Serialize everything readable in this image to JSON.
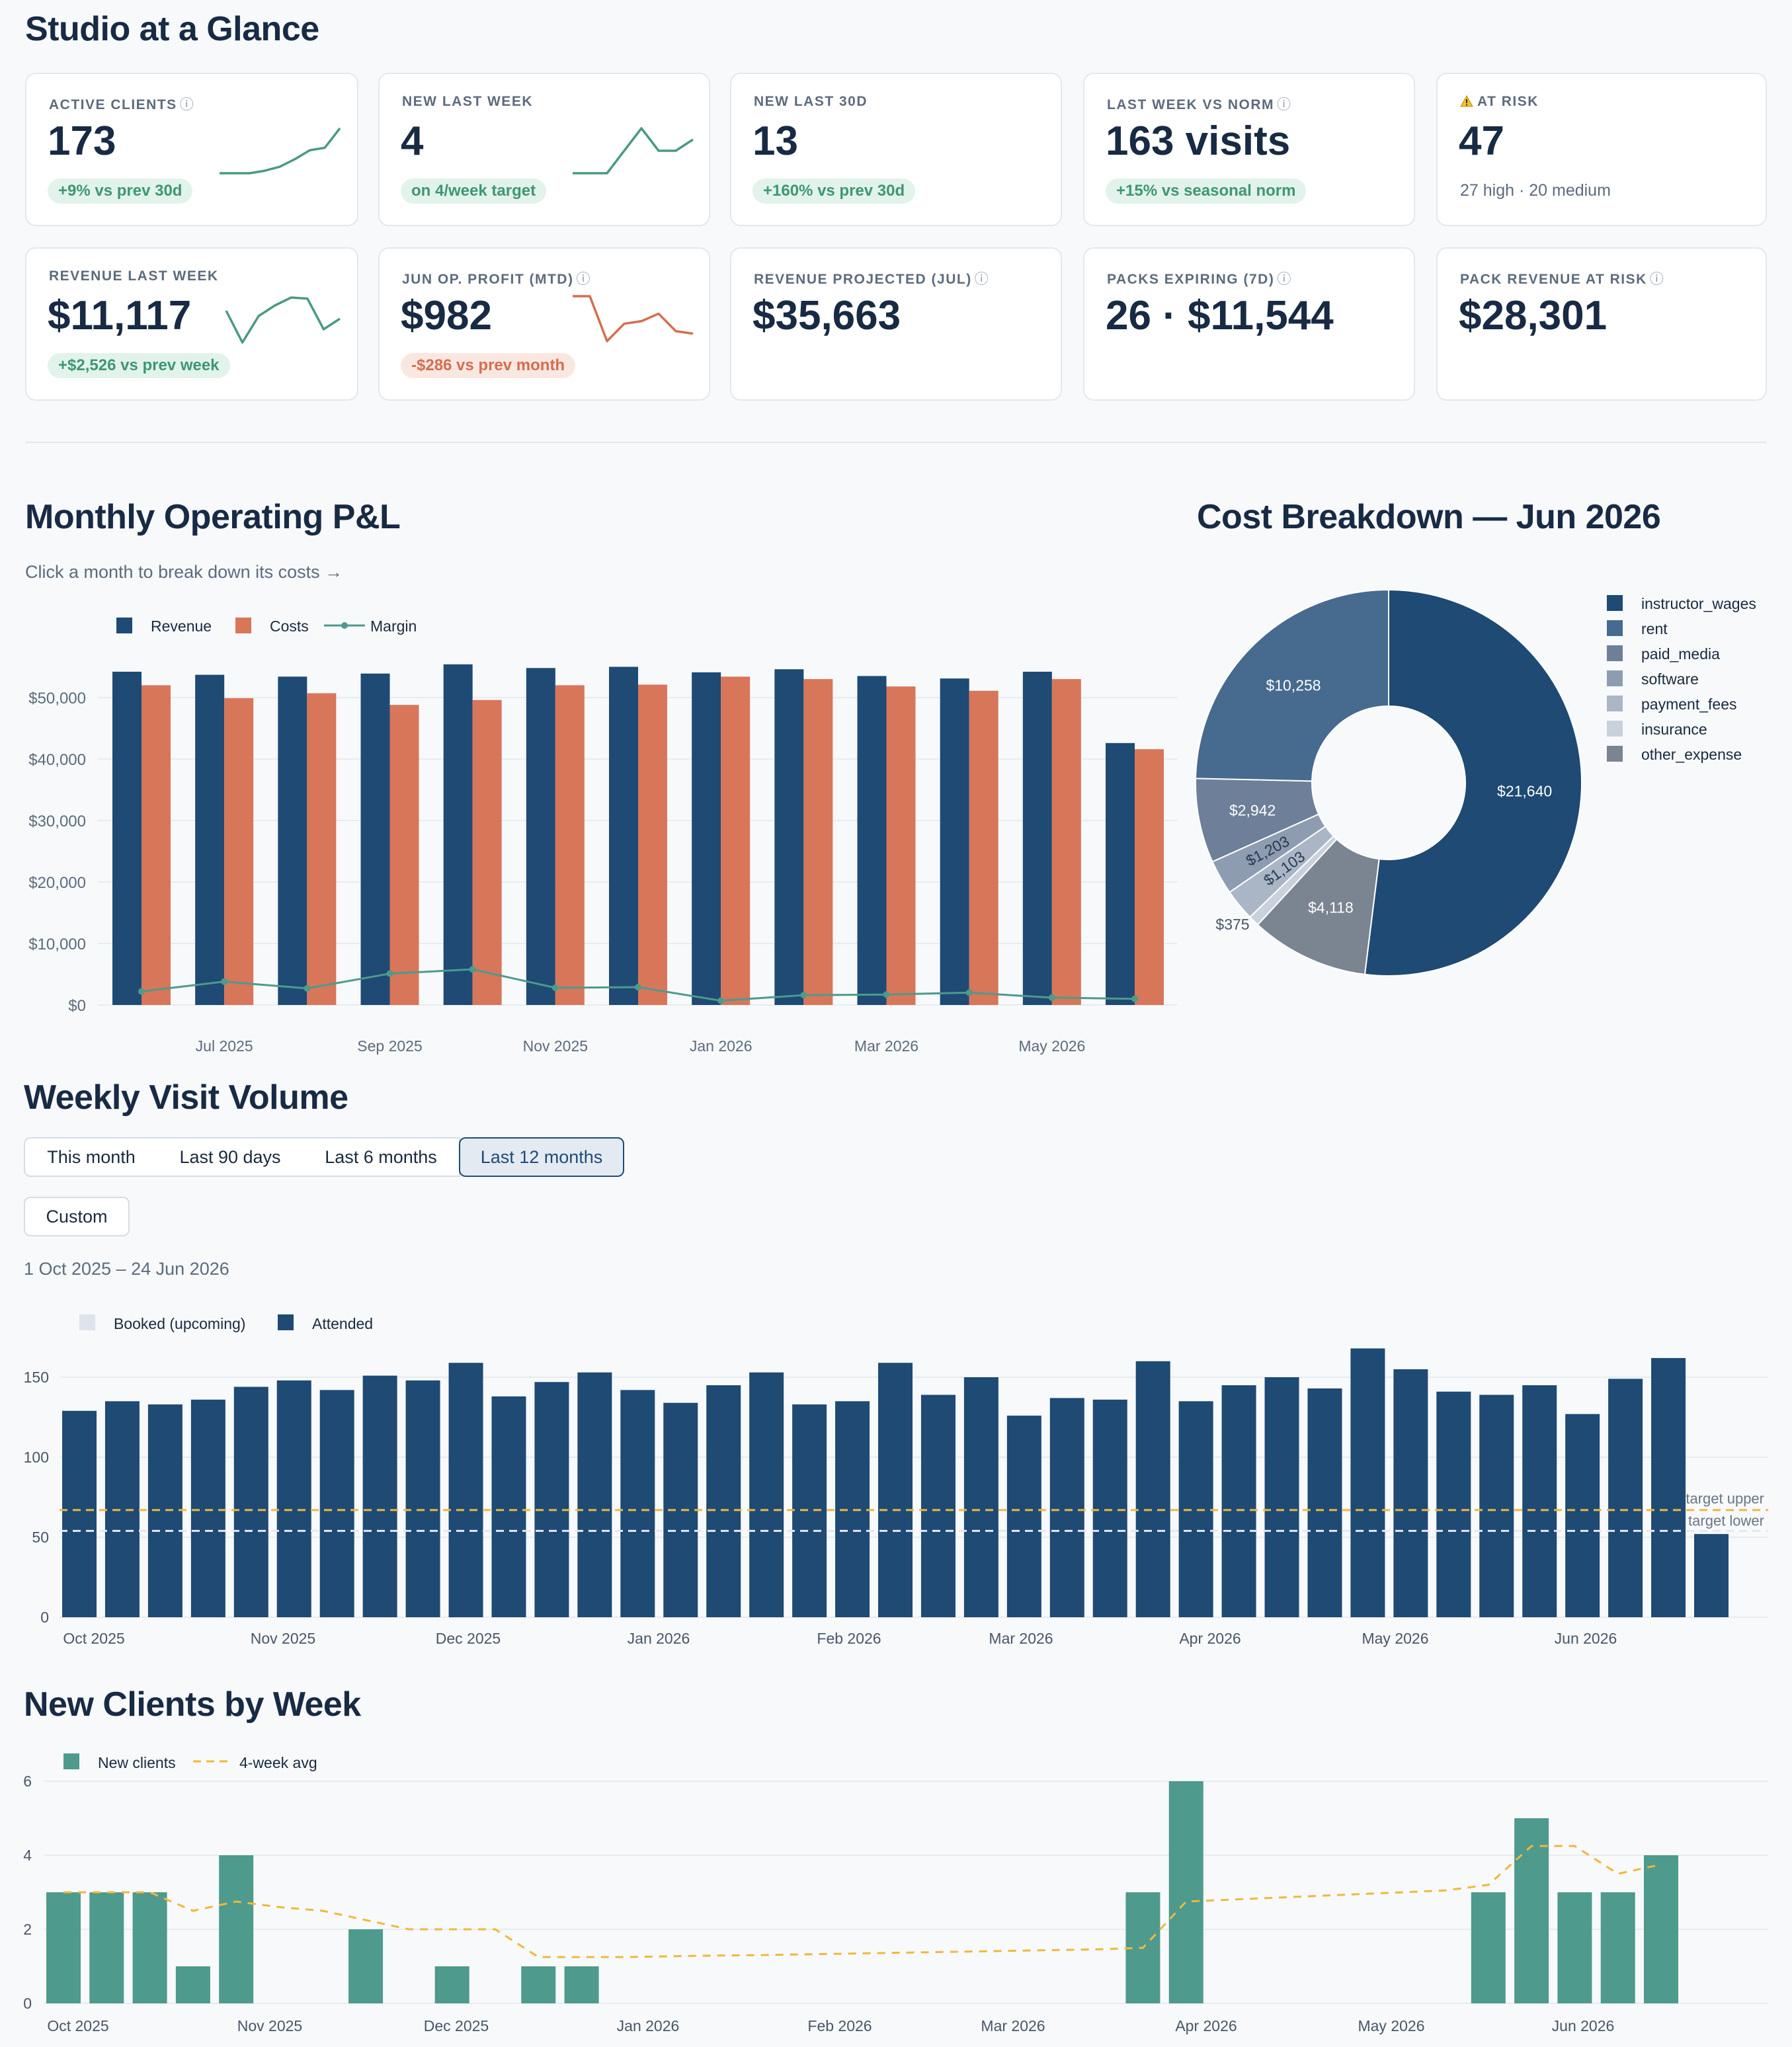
{
  "page": {
    "title": "Studio at a Glance"
  },
  "kpis_row1": [
    {
      "label": "ACTIVE CLIENTS",
      "info": "ⓘ",
      "value": "173",
      "pill": "+9% vs prev 30d",
      "pill_tone": "green",
      "spark": [
        0,
        0,
        0,
        0.5,
        1.3,
        2.8,
        4.6,
        5.1,
        9
      ],
      "spark_color": "#4a9a82"
    },
    {
      "label": "NEW LAST WEEK",
      "info": "",
      "value": "4",
      "pill": "on 4/week target",
      "pill_tone": "green",
      "spark": [
        2,
        2,
        2,
        3,
        4,
        3,
        3,
        3.5
      ],
      "spark_color": "#4a9a82"
    },
    {
      "label": "NEW LAST 30D",
      "info": "",
      "value": "13",
      "pill": "+160% vs prev 30d",
      "pill_tone": "green"
    },
    {
      "label": "LAST WEEK VS NORM",
      "info": "ⓘ",
      "value": "163 visits",
      "pill": "+15% vs seasonal norm",
      "pill_tone": "green"
    },
    {
      "label": "AT RISK",
      "icon": "warning-icon",
      "value": "47",
      "sub": "27 high · 20 medium"
    }
  ],
  "kpis_row2": [
    {
      "label": "REVENUE LAST WEEK",
      "info": "",
      "value": "$11,117",
      "pill": "+$2,526 vs prev week",
      "pill_tone": "green",
      "spark": [
        8,
        2,
        7,
        9,
        10.5,
        10.3,
        4.5,
        6.5
      ],
      "spark_color": "#4a9a82"
    },
    {
      "label": "JUN OP. PROFIT (MTD)",
      "info": "ⓘ",
      "value": "$982",
      "pill": "-$286 vs prev month",
      "pill_tone": "red",
      "spark": [
        10,
        10,
        1,
        4.5,
        5,
        6.5,
        3,
        2.5
      ],
      "spark_color": "#d46e4f"
    },
    {
      "label": "REVENUE PROJECTED (JUL)",
      "info": "ⓘ",
      "value": "$35,663"
    },
    {
      "label": "PACKS EXPIRING (7D)",
      "info": "ⓘ",
      "value": "26 · $11,544"
    },
    {
      "label": "PACK REVENUE AT RISK",
      "info": "ⓘ",
      "value": "$28,301"
    }
  ],
  "pl": {
    "title": "Monthly Operating P&L",
    "hint": "Click a month to break down its costs →",
    "legend": [
      "Revenue",
      "Costs",
      "Margin"
    ]
  },
  "costs": {
    "title": "Cost Breakdown — Jun 2026"
  },
  "visits": {
    "title": "Weekly Visit Volume",
    "ranges": [
      "This month",
      "Last 90 days",
      "Last 6 months",
      "Last 12 months"
    ],
    "active_range": "Last 12 months",
    "custom": "Custom",
    "date_range": "1 Oct 2025 – 24 Jun 2026",
    "legend": [
      "Booked (upcoming)",
      "Attended"
    ],
    "target_upper_label": "target upper",
    "target_lower_label": "target lower"
  },
  "newclients": {
    "title": "New Clients by Week",
    "legend": [
      "New clients",
      "4-week avg"
    ]
  },
  "colors": {
    "navy": "#1e4a74",
    "orange": "#d8765a",
    "teal": "#4e9a8c",
    "amber": "#f0b83c"
  },
  "chart_data": [
    {
      "type": "bar",
      "title": "Monthly Operating P&L",
      "categories": [
        "Jun 2025",
        "Jul 2025",
        "Aug 2025",
        "Sep 2025",
        "Oct 2025",
        "Nov 2025",
        "Dec 2025",
        "Jan 2026",
        "Feb 2026",
        "Mar 2026",
        "Apr 2026",
        "May 2026",
        "Jun 2026"
      ],
      "tick_labels": [
        "Jul 2025",
        "Sep 2025",
        "Nov 2025",
        "Jan 2026",
        "Mar 2026",
        "May 2026"
      ],
      "series": [
        {
          "name": "Revenue",
          "values": [
            54200,
            53700,
            53400,
            53900,
            55400,
            54800,
            55000,
            54100,
            54600,
            53500,
            53100,
            54200,
            42600
          ]
        },
        {
          "name": "Costs",
          "values": [
            52000,
            49900,
            50700,
            48800,
            49600,
            52000,
            52100,
            53400,
            53000,
            51800,
            51100,
            53000,
            41600
          ]
        },
        {
          "name": "Margin",
          "values": [
            2200,
            3800,
            2700,
            5100,
            5800,
            2800,
            2900,
            700,
            1600,
            1700,
            2000,
            1200,
            1000
          ]
        }
      ],
      "ylabel": "",
      "yticks": [
        "$0",
        "$10,000",
        "$20,000",
        "$30,000",
        "$40,000",
        "$50,000"
      ],
      "ylim": [
        0,
        58000
      ],
      "legend": "top-left",
      "grid": true
    },
    {
      "type": "pie",
      "title": "Cost Breakdown — Jun 2026",
      "labels": [
        "instructor_wages",
        "rent",
        "paid_media",
        "software",
        "payment_fees",
        "insurance",
        "other_expense"
      ],
      "values": [
        21640,
        10258,
        2942,
        1203,
        1103,
        375,
        4118
      ],
      "value_labels": [
        "$21,640",
        "$10,258",
        "$2,942",
        "$1,203",
        "$1,103",
        "$375",
        "$4,118"
      ],
      "colors": [
        "#1e4a74",
        "#476a8f",
        "#6d7f99",
        "#8e9cb1",
        "#aab6c6",
        "#c8d1dc",
        "#7b8491"
      ],
      "legend": "right",
      "donut": true
    },
    {
      "type": "bar",
      "title": "Weekly Visit Volume",
      "x_ticks": [
        "Oct 2025",
        "Nov 2025",
        "Dec 2025",
        "Jan 2026",
        "Feb 2026",
        "Mar 2026",
        "Apr 2026",
        "May 2026",
        "Jun 2026"
      ],
      "series": [
        {
          "name": "Attended",
          "values": [
            129,
            135,
            133,
            136,
            144,
            148,
            142,
            151,
            148,
            159,
            138,
            147,
            153,
            142,
            134,
            145,
            153,
            133,
            135,
            159,
            139,
            150,
            126,
            137,
            136,
            160,
            135,
            145,
            150,
            143,
            168,
            155,
            141,
            139,
            145,
            127,
            149,
            162,
            52
          ]
        },
        {
          "name": "Booked (upcoming)",
          "values": []
        }
      ],
      "target_upper": 67,
      "target_lower": 54,
      "yticks": [
        0,
        50,
        100,
        150
      ],
      "ylim": [
        0,
        170
      ],
      "grid": true
    },
    {
      "type": "bar",
      "title": "New Clients by Week",
      "x_ticks": [
        "Oct 2025",
        "Nov 2025",
        "Dec 2025",
        "Jan 2026",
        "Feb 2026",
        "Mar 2026",
        "Apr 2026",
        "May 2026",
        "Jun 2026"
      ],
      "series": [
        {
          "name": "New clients",
          "values": [
            3,
            3,
            3,
            1,
            4,
            0,
            0,
            2,
            0,
            1,
            0,
            1,
            1,
            0,
            0,
            0,
            0,
            0,
            0,
            0,
            0,
            0,
            0,
            0,
            0,
            3,
            6,
            0,
            0,
            0,
            0,
            0,
            0,
            3,
            5,
            3,
            3,
            4
          ]
        },
        {
          "name": "4-week avg",
          "values": [
            3,
            3,
            3,
            2.5,
            2.75,
            2.6,
            2.5,
            2.25,
            2,
            2,
            2,
            1.25,
            1.25,
            1.25,
            1.27,
            1.29,
            1.3,
            1.32,
            1.34,
            1.36,
            1.38,
            1.4,
            1.42,
            1.44,
            1.46,
            1.5,
            2.75,
            2.8,
            2.85,
            2.9,
            2.95,
            3.0,
            3.05,
            3.2,
            4.25,
            4.25,
            3.5,
            3.75
          ]
        }
      ],
      "yticks": [
        0,
        2,
        4,
        6
      ],
      "ylim": [
        0,
        6
      ],
      "grid": true
    }
  ]
}
